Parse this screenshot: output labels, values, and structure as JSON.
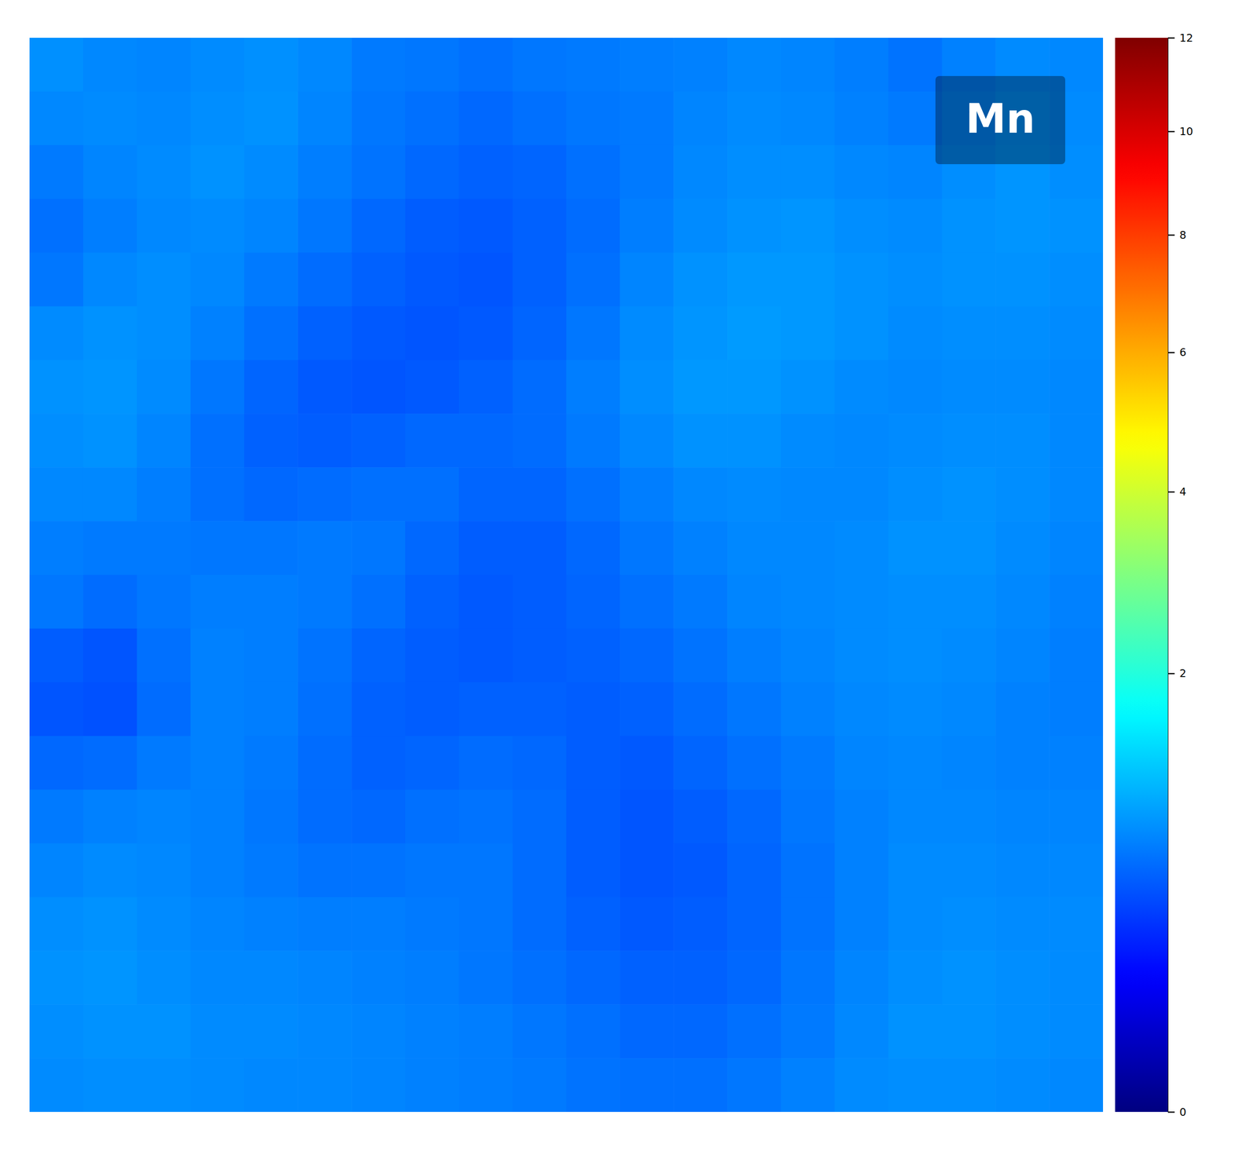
{
  "chart_data": {
    "type": "heatmap",
    "title": "Mn",
    "cells": [
      [
        0.85,
        0.8,
        0.78,
        0.82,
        0.85,
        0.8,
        0.72,
        0.7,
        0.66,
        0.7,
        0.72,
        0.74,
        0.76,
        0.8,
        0.78,
        0.74,
        0.68,
        0.76,
        0.82,
        0.8
      ],
      [
        0.8,
        0.82,
        0.8,
        0.84,
        0.86,
        0.78,
        0.7,
        0.66,
        0.62,
        0.66,
        0.7,
        0.72,
        0.78,
        0.82,
        0.8,
        0.76,
        0.72,
        0.8,
        0.86,
        0.82
      ],
      [
        0.72,
        0.78,
        0.82,
        0.86,
        0.82,
        0.74,
        0.68,
        0.62,
        0.58,
        0.6,
        0.66,
        0.72,
        0.8,
        0.84,
        0.84,
        0.8,
        0.78,
        0.84,
        0.88,
        0.84
      ],
      [
        0.66,
        0.74,
        0.8,
        0.82,
        0.78,
        0.7,
        0.62,
        0.56,
        0.54,
        0.58,
        0.64,
        0.74,
        0.82,
        0.86,
        0.88,
        0.84,
        0.82,
        0.86,
        0.88,
        0.86
      ],
      [
        0.7,
        0.8,
        0.84,
        0.8,
        0.72,
        0.64,
        0.58,
        0.54,
        0.52,
        0.58,
        0.66,
        0.78,
        0.86,
        0.9,
        0.9,
        0.86,
        0.84,
        0.86,
        0.86,
        0.84
      ],
      [
        0.82,
        0.86,
        0.84,
        0.76,
        0.66,
        0.58,
        0.54,
        0.52,
        0.54,
        0.6,
        0.7,
        0.82,
        0.88,
        0.92,
        0.9,
        0.86,
        0.82,
        0.84,
        0.84,
        0.82
      ],
      [
        0.86,
        0.88,
        0.82,
        0.7,
        0.6,
        0.54,
        0.52,
        0.54,
        0.58,
        0.64,
        0.74,
        0.84,
        0.9,
        0.9,
        0.86,
        0.82,
        0.8,
        0.82,
        0.82,
        0.8
      ],
      [
        0.84,
        0.86,
        0.78,
        0.66,
        0.58,
        0.56,
        0.58,
        0.62,
        0.62,
        0.64,
        0.72,
        0.8,
        0.86,
        0.86,
        0.82,
        0.8,
        0.82,
        0.84,
        0.84,
        0.8
      ],
      [
        0.8,
        0.8,
        0.74,
        0.66,
        0.62,
        0.64,
        0.66,
        0.66,
        0.6,
        0.6,
        0.66,
        0.74,
        0.8,
        0.82,
        0.8,
        0.8,
        0.84,
        0.86,
        0.84,
        0.8
      ],
      [
        0.74,
        0.72,
        0.72,
        0.7,
        0.7,
        0.72,
        0.7,
        0.62,
        0.56,
        0.56,
        0.62,
        0.7,
        0.76,
        0.8,
        0.8,
        0.82,
        0.86,
        0.86,
        0.82,
        0.78
      ],
      [
        0.7,
        0.64,
        0.7,
        0.74,
        0.74,
        0.72,
        0.66,
        0.58,
        0.54,
        0.56,
        0.6,
        0.66,
        0.72,
        0.78,
        0.8,
        0.82,
        0.84,
        0.84,
        0.8,
        0.76
      ],
      [
        0.56,
        0.52,
        0.66,
        0.76,
        0.74,
        0.68,
        0.6,
        0.56,
        0.54,
        0.56,
        0.58,
        0.62,
        0.68,
        0.74,
        0.78,
        0.82,
        0.84,
        0.82,
        0.78,
        0.74
      ],
      [
        0.52,
        0.5,
        0.64,
        0.76,
        0.74,
        0.66,
        0.58,
        0.56,
        0.58,
        0.58,
        0.56,
        0.58,
        0.64,
        0.7,
        0.76,
        0.8,
        0.82,
        0.8,
        0.76,
        0.74
      ],
      [
        0.62,
        0.64,
        0.72,
        0.76,
        0.72,
        0.64,
        0.58,
        0.6,
        0.64,
        0.62,
        0.56,
        0.54,
        0.6,
        0.66,
        0.72,
        0.78,
        0.8,
        0.78,
        0.76,
        0.76
      ],
      [
        0.72,
        0.76,
        0.78,
        0.76,
        0.7,
        0.64,
        0.62,
        0.66,
        0.68,
        0.64,
        0.56,
        0.52,
        0.56,
        0.62,
        0.7,
        0.76,
        0.8,
        0.8,
        0.78,
        0.78
      ],
      [
        0.78,
        0.82,
        0.8,
        0.76,
        0.72,
        0.68,
        0.68,
        0.7,
        0.7,
        0.64,
        0.56,
        0.52,
        0.54,
        0.6,
        0.68,
        0.76,
        0.82,
        0.82,
        0.8,
        0.8
      ],
      [
        0.84,
        0.86,
        0.82,
        0.78,
        0.76,
        0.74,
        0.74,
        0.72,
        0.7,
        0.64,
        0.58,
        0.54,
        0.56,
        0.6,
        0.68,
        0.76,
        0.82,
        0.84,
        0.82,
        0.82
      ],
      [
        0.86,
        0.88,
        0.84,
        0.8,
        0.8,
        0.78,
        0.76,
        0.74,
        0.7,
        0.66,
        0.62,
        0.58,
        0.58,
        0.62,
        0.7,
        0.78,
        0.84,
        0.86,
        0.84,
        0.82
      ],
      [
        0.84,
        0.86,
        0.86,
        0.82,
        0.82,
        0.8,
        0.78,
        0.76,
        0.74,
        0.7,
        0.66,
        0.62,
        0.62,
        0.66,
        0.72,
        0.8,
        0.86,
        0.86,
        0.84,
        0.82
      ],
      [
        0.82,
        0.84,
        0.84,
        0.82,
        0.8,
        0.8,
        0.78,
        0.76,
        0.74,
        0.72,
        0.68,
        0.66,
        0.66,
        0.7,
        0.76,
        0.82,
        0.84,
        0.84,
        0.82,
        0.8
      ]
    ],
    "colorbar_range": [
      0,
      12
    ],
    "colorbar_ticks": [
      0,
      2,
      4,
      6,
      8,
      10,
      12
    ]
  }
}
